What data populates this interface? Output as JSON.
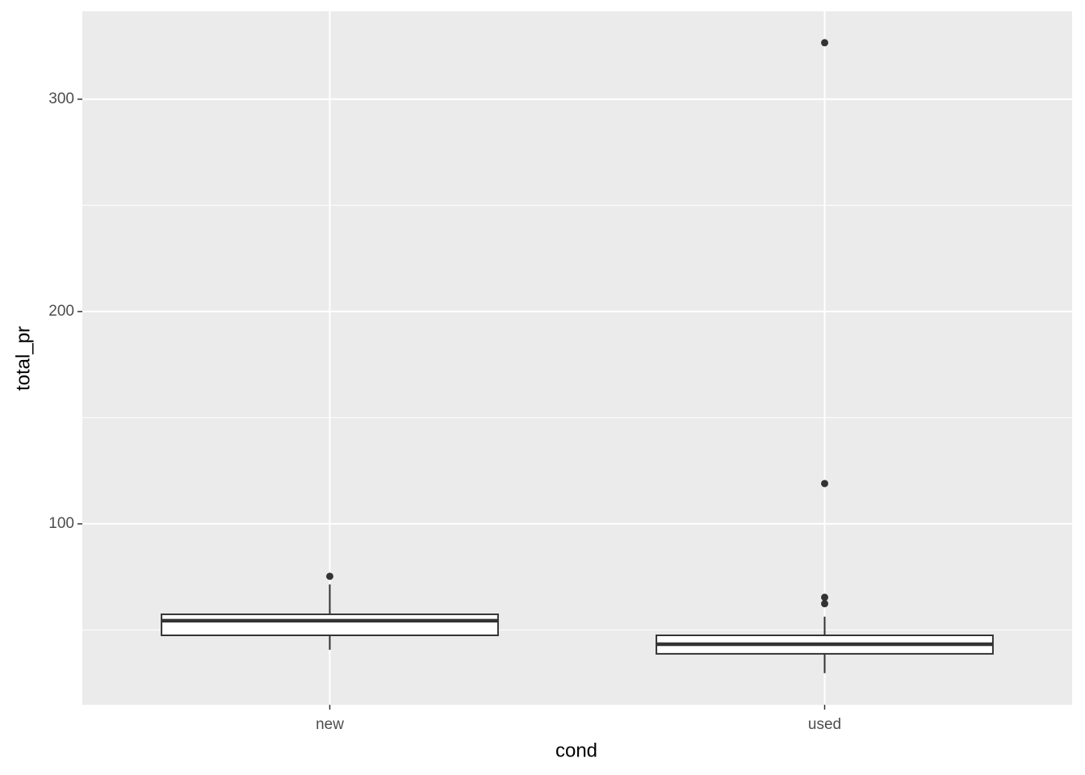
{
  "chart_data": {
    "type": "box",
    "x_label": "cond",
    "y_label": "total_pr",
    "categories": [
      "new",
      "used"
    ],
    "boxes": [
      {
        "whisker_low": 40.7,
        "q1": 47.5,
        "median": 54.4,
        "q3": 57.4,
        "whisker_high": 71.5,
        "outliers": [
          75.3
        ]
      },
      {
        "whisker_low": 29.7,
        "q1": 38.8,
        "median": 43.3,
        "q3": 47.5,
        "whisker_high": 56.3,
        "outliers": [
          326.6,
          119.0,
          65.4,
          62.4
        ]
      }
    ],
    "ylim": [
      14.8,
      341.4
    ],
    "yticks": [
      100,
      200,
      300
    ],
    "minor_yticks": [
      50,
      150,
      250
    ],
    "grid": true,
    "panel_color": "#ebebeb",
    "grid_color": "#ffffff",
    "box_fill": "#ffffff",
    "line_color": "#333333"
  }
}
